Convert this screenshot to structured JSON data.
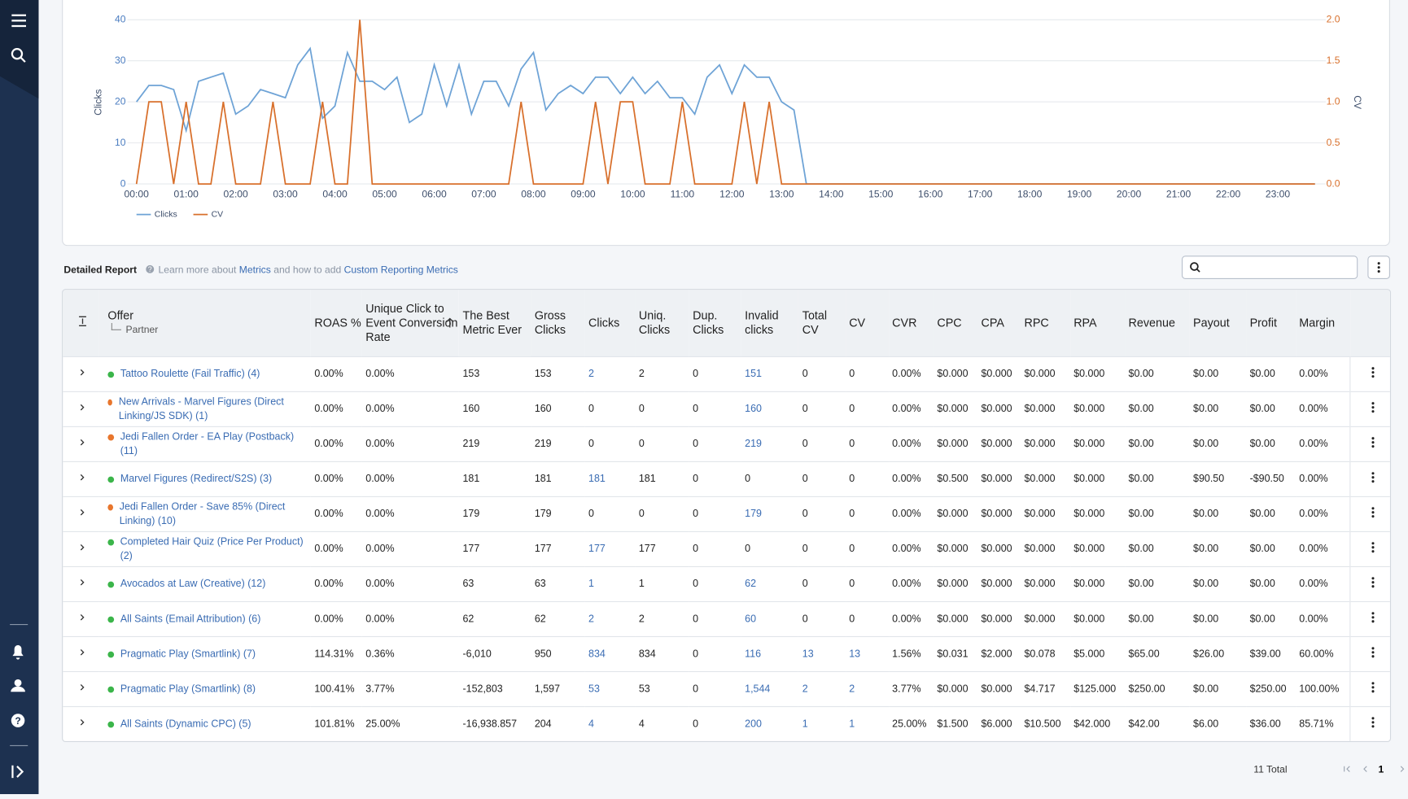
{
  "chart_data": {
    "type": "line",
    "ylabel": "Clicks",
    "y2label": "CV",
    "categories": [
      "00:00",
      null,
      null,
      null,
      "01:00",
      null,
      null,
      null,
      "02:00",
      null,
      null,
      null,
      "03:00",
      null,
      null,
      null,
      "04:00",
      null,
      null,
      null,
      "05:00",
      null,
      null,
      null,
      "06:00",
      null,
      null,
      null,
      "07:00",
      null,
      null,
      null,
      "08:00",
      null,
      null,
      null,
      "09:00",
      null,
      null,
      null,
      "10:00",
      null,
      null,
      null,
      "11:00",
      null,
      null,
      null,
      "12:00",
      null,
      null,
      null,
      "13:00",
      null,
      null,
      null,
      "14:00",
      null,
      null,
      null,
      "15:00",
      null,
      null,
      null,
      "16:00",
      null,
      null,
      null,
      "17:00",
      null,
      null,
      null,
      "18:00",
      null,
      null,
      null,
      "19:00",
      null,
      null,
      null,
      "20:00",
      null,
      null,
      null,
      "21:00",
      null,
      null,
      null,
      "22:00",
      null,
      null,
      null,
      "23:00",
      null,
      null,
      null
    ],
    "series": [
      {
        "name": "Clicks",
        "color": "#6ea3d6",
        "values": [
          20,
          24,
          24,
          23,
          13,
          25,
          26,
          27,
          17,
          19,
          23,
          22,
          21,
          29,
          33,
          16,
          19,
          32,
          25,
          25,
          23,
          26,
          15,
          17,
          29,
          19,
          29,
          17,
          25,
          25,
          19,
          28,
          32,
          18,
          22,
          24,
          22,
          26,
          26,
          22,
          26,
          22,
          25,
          21,
          21,
          17,
          26,
          29,
          22,
          29,
          26,
          26,
          20,
          18,
          0,
          0,
          0,
          0,
          0,
          0,
          0,
          0,
          0,
          0,
          0,
          0,
          0,
          0,
          0,
          0,
          0,
          0,
          0,
          0,
          0,
          0,
          0,
          0,
          0,
          0,
          0,
          0,
          0,
          0,
          0,
          0,
          0,
          0,
          0,
          0,
          0,
          0,
          0,
          0,
          0,
          0
        ]
      },
      {
        "name": "CV",
        "color": "#d8702c",
        "axis": "y2",
        "values": [
          0,
          1,
          1,
          0,
          1,
          0,
          0,
          1,
          0,
          0,
          0,
          1,
          0,
          0,
          0,
          1,
          0,
          0,
          2,
          0,
          0,
          0,
          0,
          0,
          0,
          0,
          0,
          0,
          0,
          0,
          0,
          1,
          0,
          0,
          0,
          0,
          0,
          1,
          0,
          1,
          1,
          0,
          0,
          0,
          1,
          0,
          0,
          0,
          0,
          1,
          0,
          1,
          0,
          0,
          0,
          0,
          0,
          0,
          0,
          0,
          0,
          0,
          0,
          0,
          0,
          0,
          0,
          0,
          0,
          0,
          0,
          0,
          0,
          0,
          0,
          0,
          0,
          0,
          0,
          0,
          0,
          0,
          0,
          0,
          0,
          0,
          0,
          0,
          0,
          0,
          0,
          0,
          0,
          0,
          0,
          0
        ]
      }
    ],
    "ylim": [
      0,
      40
    ],
    "yticks": [
      0,
      10,
      20,
      30,
      40
    ],
    "y2lim": [
      0,
      2
    ],
    "y2ticks": [
      {
        "value": 0,
        "label": "0.0"
      },
      {
        "value": 0.5,
        "label": "0.5"
      },
      {
        "value": 1,
        "label": "1.0"
      },
      {
        "value": 1.5,
        "label": "1.5"
      },
      {
        "value": 2,
        "label": "2.0"
      }
    ],
    "grid": true,
    "legend": "bottom-left"
  },
  "report": {
    "title": "Detailed Report",
    "help_before": "Learn more about",
    "help_link1": "Metrics",
    "help_middle": "and how to add",
    "help_link2": "Custom Reporting Metrics"
  },
  "table": {
    "columns": [
      {
        "title": "Offer",
        "subtitle": "Partner"
      },
      "ROAS %",
      "Unique Click to Event Conversion Rate",
      "The Best Metric Ever",
      "Gross Clicks",
      "Clicks",
      "Uniq. Clicks",
      "Dup. Clicks",
      "Invalid clicks",
      "Total CV",
      "CV",
      "CVR",
      "CPC",
      "CPA",
      "RPC",
      "RPA",
      "Revenue",
      "Payout",
      "Profit",
      "Margin"
    ],
    "rows": [
      {
        "offer": "Tattoo Roulette (Fail Traffic) (4)",
        "dot": "#3bb54a",
        "cells": [
          "0.00%",
          "0.00%",
          "153",
          "153",
          "2",
          "2",
          "0",
          "151",
          "0",
          "0",
          "0.00%",
          "$0.000",
          "$0.000",
          "$0.000",
          "$0.000",
          "$0.00",
          "$0.00",
          "$0.00",
          "0.00%"
        ]
      },
      {
        "offer": "New Arrivals - Marvel Figures (Direct Linking/JS SDK) (1)",
        "dot": "#e8762d",
        "cells": [
          "0.00%",
          "0.00%",
          "160",
          "160",
          "0",
          "0",
          "0",
          "160",
          "0",
          "0",
          "0.00%",
          "$0.000",
          "$0.000",
          "$0.000",
          "$0.000",
          "$0.00",
          "$0.00",
          "$0.00",
          "0.00%"
        ]
      },
      {
        "offer": "Jedi Fallen Order - EA Play (Postback) (11)",
        "dot": "#e8762d",
        "cells": [
          "0.00%",
          "0.00%",
          "219",
          "219",
          "0",
          "0",
          "0",
          "219",
          "0",
          "0",
          "0.00%",
          "$0.000",
          "$0.000",
          "$0.000",
          "$0.000",
          "$0.00",
          "$0.00",
          "$0.00",
          "0.00%"
        ]
      },
      {
        "offer": "Marvel Figures (Redirect/S2S) (3)",
        "dot": "#3bb54a",
        "cells": [
          "0.00%",
          "0.00%",
          "181",
          "181",
          "181",
          "181",
          "0",
          "0",
          "0",
          "0",
          "0.00%",
          "$0.500",
          "$0.000",
          "$0.000",
          "$0.000",
          "$0.00",
          "$90.50",
          "-$90.50",
          "0.00%"
        ]
      },
      {
        "offer": "Jedi Fallen Order - Save 85% (Direct Linking) (10)",
        "dot": "#e8762d",
        "cells": [
          "0.00%",
          "0.00%",
          "179",
          "179",
          "0",
          "0",
          "0",
          "179",
          "0",
          "0",
          "0.00%",
          "$0.000",
          "$0.000",
          "$0.000",
          "$0.000",
          "$0.00",
          "$0.00",
          "$0.00",
          "0.00%"
        ]
      },
      {
        "offer": "Completed Hair Quiz (Price Per Product) (2)",
        "dot": "#3bb54a",
        "cells": [
          "0.00%",
          "0.00%",
          "177",
          "177",
          "177",
          "177",
          "0",
          "0",
          "0",
          "0",
          "0.00%",
          "$0.000",
          "$0.000",
          "$0.000",
          "$0.000",
          "$0.00",
          "$0.00",
          "$0.00",
          "0.00%"
        ]
      },
      {
        "offer": "Avocados at Law (Creative) (12)",
        "dot": "#3bb54a",
        "cells": [
          "0.00%",
          "0.00%",
          "63",
          "63",
          "1",
          "1",
          "0",
          "62",
          "0",
          "0",
          "0.00%",
          "$0.000",
          "$0.000",
          "$0.000",
          "$0.000",
          "$0.00",
          "$0.00",
          "$0.00",
          "0.00%"
        ]
      },
      {
        "offer": "All Saints (Email Attribution) (6)",
        "dot": "#3bb54a",
        "cells": [
          "0.00%",
          "0.00%",
          "62",
          "62",
          "2",
          "2",
          "0",
          "60",
          "0",
          "0",
          "0.00%",
          "$0.000",
          "$0.000",
          "$0.000",
          "$0.000",
          "$0.00",
          "$0.00",
          "$0.00",
          "0.00%"
        ]
      },
      {
        "offer": "Pragmatic Play (Smartlink) (7)",
        "dot": "#3bb54a",
        "cells": [
          "114.31%",
          "0.36%",
          "-6,010",
          "950",
          "834",
          "834",
          "0",
          "116",
          "13",
          "13",
          "1.56%",
          "$0.031",
          "$2.000",
          "$0.078",
          "$5.000",
          "$65.00",
          "$26.00",
          "$39.00",
          "60.00%"
        ]
      },
      {
        "offer": "Pragmatic Play (Smartlink) (8)",
        "dot": "#3bb54a",
        "cells": [
          "100.41%",
          "3.77%",
          "-152,803",
          "1,597",
          "53",
          "53",
          "0",
          "1,544",
          "2",
          "2",
          "3.77%",
          "$0.000",
          "$0.000",
          "$4.717",
          "$125.000",
          "$250.00",
          "$0.00",
          "$250.00",
          "100.00%"
        ]
      },
      {
        "offer": "All Saints (Dynamic CPC) (5)",
        "dot": "#3bb54a",
        "cells": [
          "101.81%",
          "25.00%",
          "-16,938.857",
          "204",
          "4",
          "4",
          "0",
          "200",
          "1",
          "1",
          "25.00%",
          "$1.500",
          "$6.000",
          "$10.500",
          "$42.000",
          "$42.00",
          "$6.00",
          "$36.00",
          "85.71%"
        ]
      }
    ]
  },
  "pagination": {
    "total": "11 Total",
    "page": 1
  }
}
